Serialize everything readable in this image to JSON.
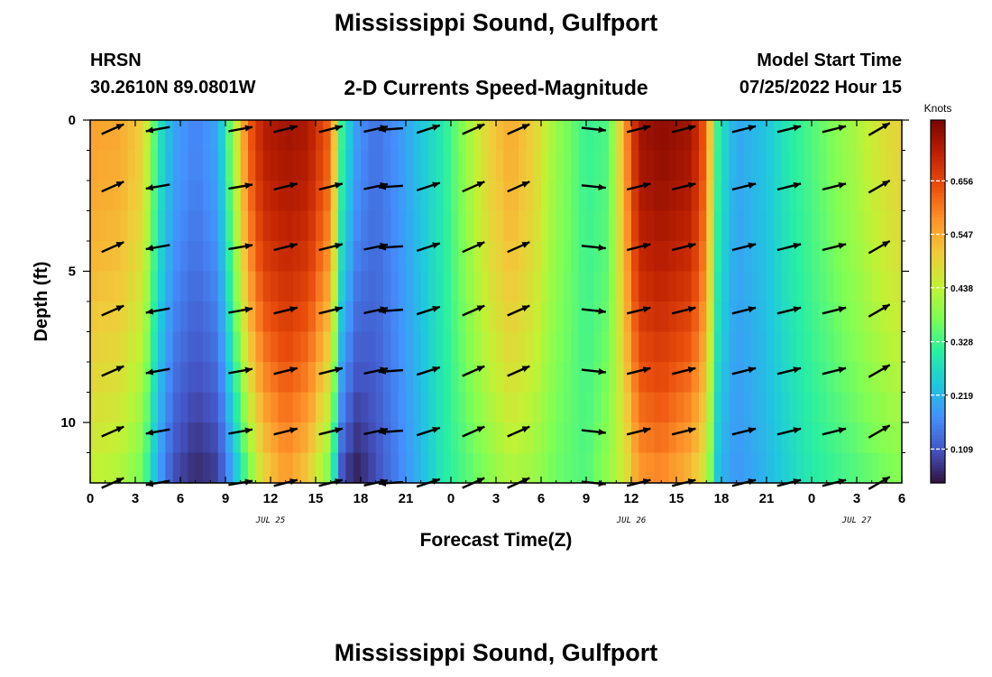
{
  "header": {
    "title": "Mississippi Sound, Gulfport",
    "station_id": "HRSN",
    "coordinates": "30.2610N  89.0801W",
    "product": "2-D Currents Speed-Magnitude",
    "model_start_label": "Model Start Time",
    "model_start_value": "07/25/2022 Hour 15"
  },
  "footer": {
    "title": "Mississippi Sound, Gulfport"
  },
  "colors": {
    "colormap": [
      "#30123b",
      "#4454c4",
      "#4490fe",
      "#1fc8de",
      "#29efa2",
      "#7eff55",
      "#c3f134",
      "#f1ca3a",
      "#fe922a",
      "#ea4f0d",
      "#be2102",
      "#7a0403"
    ],
    "arrow": "#000000"
  },
  "chart_data": {
    "type": "heatmap",
    "xlabel": "Forecast Time(Z)",
    "ylabel": "Depth (ft)",
    "xlim": [
      0,
      54
    ],
    "ylim": [
      12,
      0
    ],
    "x_ticks": [
      0,
      3,
      6,
      9,
      12,
      15,
      18,
      21,
      24,
      27,
      30,
      33,
      36,
      39,
      42,
      45,
      48,
      51,
      54
    ],
    "x_tick_labels": [
      "0",
      "3",
      "6",
      "9",
      "12",
      "15",
      "18",
      "21",
      "0",
      "3",
      "6",
      "9",
      "12",
      "15",
      "18",
      "21",
      "0",
      "3",
      "6"
    ],
    "y_ticks": [
      0,
      5,
      10
    ],
    "y_tick_labels": [
      "0",
      "5",
      "10"
    ],
    "date_labels": [
      {
        "x": 12,
        "text": "JUL 25"
      },
      {
        "x": 36,
        "text": "JUL 26"
      },
      {
        "x": 51,
        "text": "JUL 27"
      }
    ],
    "colorbar": {
      "label": "Knots",
      "ticks": [
        0.109,
        0.219,
        0.328,
        0.438,
        0.547,
        0.656
      ],
      "range": [
        0.04,
        0.78
      ]
    },
    "speed_profile": {
      "time": [
        0,
        2,
        3.5,
        4.5,
        5.5,
        7,
        8.5,
        9.5,
        10.5,
        11.5,
        13,
        14.5,
        16,
        16.8,
        17.8,
        19,
        20.5,
        22,
        23.5,
        25,
        26.5,
        28,
        29.5,
        31,
        33,
        34.5,
        35.5,
        36.5,
        38,
        40,
        41,
        41.8,
        43,
        45,
        46.5,
        48,
        49.5,
        51,
        52.5,
        54
      ],
      "surface_knots": [
        0.56,
        0.55,
        0.5,
        0.3,
        0.2,
        0.16,
        0.2,
        0.4,
        0.62,
        0.72,
        0.74,
        0.73,
        0.62,
        0.3,
        0.18,
        0.14,
        0.18,
        0.24,
        0.3,
        0.4,
        0.5,
        0.55,
        0.5,
        0.4,
        0.32,
        0.34,
        0.55,
        0.74,
        0.76,
        0.74,
        0.62,
        0.3,
        0.2,
        0.24,
        0.3,
        0.34,
        0.38,
        0.42,
        0.47,
        0.5
      ],
      "bottom_knots": [
        0.44,
        0.42,
        0.36,
        0.2,
        0.1,
        0.06,
        0.08,
        0.2,
        0.35,
        0.48,
        0.56,
        0.5,
        0.35,
        0.08,
        0.05,
        0.1,
        0.16,
        0.22,
        0.3,
        0.34,
        0.38,
        0.42,
        0.4,
        0.36,
        0.34,
        0.4,
        0.45,
        0.56,
        0.58,
        0.52,
        0.44,
        0.22,
        0.18,
        0.22,
        0.26,
        0.3,
        0.32,
        0.34,
        0.36,
        0.38
      ]
    },
    "vectors": {
      "times": [
        1.5,
        4.5,
        10,
        13,
        16,
        19,
        20,
        22.5,
        25.5,
        28.5,
        33.5,
        36.5,
        39.5,
        43.5,
        46.5,
        49.5,
        52.5
      ],
      "depths": [
        0.3,
        2.2,
        4.2,
        6.3,
        8.3,
        10.3,
        12
      ],
      "direction_deg": [
        66,
        260,
        80,
        76,
        76,
        78,
        266,
        72,
        66,
        66,
        96,
        76,
        76,
        76,
        76,
        76,
        60
      ]
    }
  }
}
